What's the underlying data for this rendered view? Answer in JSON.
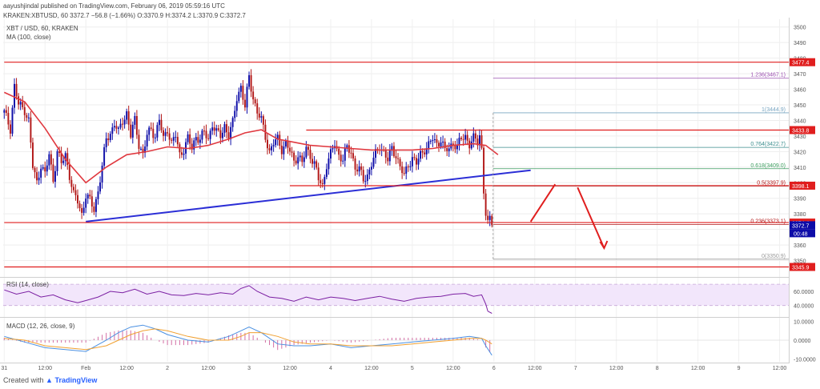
{
  "header": {
    "user_line": "aayushjindal published on TradingView.com, February 06, 2019 05:59:16 UTC",
    "ohlc_line": "KRAKEN:XBTUSD, 60  3372.7  −56.8 (−1.66%)  O:3370.9  H:3374.2  L:3370.9  C:3372.7",
    "symbol_line": "XBT / USD, 60, KRAKEN",
    "ma_line": "MA (100, close)"
  },
  "footer": {
    "prefix": "Created with",
    "brand": "TradingView"
  },
  "colors": {
    "up": "#0d0ca8",
    "down": "#b21717",
    "ma": "#e0383f",
    "trendline": "#2b2ed6",
    "resistance": "#e01e1e",
    "fib1": "#7aa6c2",
    "fib1236": "#9b4fb0",
    "fib764": "#3b8d8d",
    "fib618": "#3e9d60",
    "fib0": "#999999",
    "rsi": "#7b1fa2",
    "rsi_band": "#f2e6fb",
    "macd": "#4a90e2",
    "signal": "#f0a030",
    "hist": "#d36fa5"
  },
  "chart_data": [
    {
      "type": "candlestick",
      "title": "XBT / USD, 60, KRAKEN",
      "ylim": [
        3340,
        3505
      ],
      "y_ticks": [
        3350,
        3360,
        3370,
        3380,
        3390,
        3400,
        3410,
        3420,
        3430,
        3440,
        3450,
        3460,
        3470,
        3480,
        3490,
        3500
      ],
      "x_ticks": [
        {
          "bar": 0,
          "label": "31"
        },
        {
          "bar": 20,
          "label": "12:00"
        },
        {
          "bar": 40,
          "label": "Feb"
        },
        {
          "bar": 60,
          "label": "12:00"
        },
        {
          "bar": 80,
          "label": "2"
        },
        {
          "bar": 100,
          "label": "12:00"
        },
        {
          "bar": 120,
          "label": "3"
        },
        {
          "bar": 140,
          "label": "12:00"
        },
        {
          "bar": 160,
          "label": "4"
        },
        {
          "bar": 180,
          "label": "12:00"
        },
        {
          "bar": 200,
          "label": "5"
        },
        {
          "bar": 220,
          "label": "12:00"
        },
        {
          "bar": 240,
          "label": "6"
        },
        {
          "bar": 260,
          "label": "12:00"
        },
        {
          "bar": 280,
          "label": "7"
        },
        {
          "bar": 300,
          "label": "12:00"
        },
        {
          "bar": 320,
          "label": "8"
        },
        {
          "bar": 340,
          "label": "12:00"
        },
        {
          "bar": 360,
          "label": "9"
        },
        {
          "bar": 380,
          "label": "12:00"
        }
      ],
      "key_points": [
        [
          0,
          3445
        ],
        [
          3,
          3435
        ],
        [
          5,
          3462
        ],
        [
          7,
          3450
        ],
        [
          10,
          3447
        ],
        [
          12,
          3440
        ],
        [
          14,
          3410
        ],
        [
          16,
          3400
        ],
        [
          18,
          3412
        ],
        [
          20,
          3405
        ],
        [
          22,
          3418
        ],
        [
          24,
          3402
        ],
        [
          26,
          3420
        ],
        [
          28,
          3412
        ],
        [
          30,
          3418
        ],
        [
          32,
          3405
        ],
        [
          34,
          3392
        ],
        [
          36,
          3388
        ],
        [
          38,
          3380
        ],
        [
          40,
          3392
        ],
        [
          42,
          3388
        ],
        [
          44,
          3383
        ],
        [
          46,
          3395
        ],
        [
          48,
          3410
        ],
        [
          50,
          3428
        ],
        [
          52,
          3432
        ],
        [
          54,
          3438
        ],
        [
          56,
          3432
        ],
        [
          58,
          3440
        ],
        [
          60,
          3445
        ],
        [
          62,
          3430
        ],
        [
          64,
          3440
        ],
        [
          66,
          3425
        ],
        [
          68,
          3418
        ],
        [
          70,
          3430
        ],
        [
          72,
          3435
        ],
        [
          74,
          3430
        ],
        [
          76,
          3440
        ],
        [
          78,
          3428
        ],
        [
          80,
          3435
        ],
        [
          82,
          3425
        ],
        [
          84,
          3430
        ],
        [
          86,
          3418
        ],
        [
          88,
          3422
        ],
        [
          90,
          3428
        ],
        [
          92,
          3422
        ],
        [
          94,
          3430
        ],
        [
          96,
          3428
        ],
        [
          98,
          3432
        ],
        [
          100,
          3428
        ],
        [
          102,
          3438
        ],
        [
          104,
          3432
        ],
        [
          106,
          3430
        ],
        [
          108,
          3437
        ],
        [
          110,
          3430
        ],
        [
          112,
          3438
        ],
        [
          114,
          3455
        ],
        [
          116,
          3462
        ],
        [
          118,
          3448
        ],
        [
          120,
          3468
        ],
        [
          122,
          3455
        ],
        [
          124,
          3445
        ],
        [
          126,
          3440
        ],
        [
          128,
          3430
        ],
        [
          130,
          3420
        ],
        [
          132,
          3425
        ],
        [
          134,
          3428
        ],
        [
          136,
          3422
        ],
        [
          138,
          3425
        ],
        [
          140,
          3420
        ],
        [
          142,
          3414
        ],
        [
          144,
          3418
        ],
        [
          146,
          3412
        ],
        [
          148,
          3422
        ],
        [
          150,
          3418
        ],
        [
          152,
          3412
        ],
        [
          154,
          3402
        ],
        [
          156,
          3398
        ],
        [
          158,
          3412
        ],
        [
          160,
          3418
        ],
        [
          162,
          3425
        ],
        [
          164,
          3418
        ],
        [
          166,
          3415
        ],
        [
          168,
          3422
        ],
        [
          170,
          3420
        ],
        [
          172,
          3410
        ],
        [
          174,
          3408
        ],
        [
          176,
          3402
        ],
        [
          178,
          3405
        ],
        [
          180,
          3412
        ],
        [
          182,
          3418
        ],
        [
          184,
          3424
        ],
        [
          186,
          3420
        ],
        [
          188,
          3414
        ],
        [
          190,
          3422
        ],
        [
          192,
          3418
        ],
        [
          194,
          3410
        ],
        [
          196,
          3404
        ],
        [
          198,
          3412
        ],
        [
          200,
          3416
        ],
        [
          202,
          3412
        ],
        [
          204,
          3418
        ],
        [
          206,
          3422
        ],
        [
          208,
          3424
        ],
        [
          210,
          3428
        ],
        [
          212,
          3425
        ],
        [
          214,
          3428
        ],
        [
          216,
          3420
        ],
        [
          218,
          3422
        ],
        [
          220,
          3426
        ],
        [
          222,
          3423
        ],
        [
          224,
          3428
        ],
        [
          226,
          3430
        ],
        [
          228,
          3425
        ],
        [
          230,
          3428
        ],
        [
          232,
          3426
        ],
        [
          233,
          3431
        ],
        [
          234,
          3422
        ],
        [
          235,
          3395
        ],
        [
          236,
          3380
        ],
        [
          237,
          3373
        ],
        [
          238,
          3376
        ],
        [
          239,
          3372.7
        ]
      ],
      "ma_points": [
        [
          0,
          3458
        ],
        [
          10,
          3452
        ],
        [
          20,
          3435
        ],
        [
          30,
          3415
        ],
        [
          40,
          3400
        ],
        [
          50,
          3410
        ],
        [
          60,
          3418
        ],
        [
          70,
          3420
        ],
        [
          80,
          3423
        ],
        [
          90,
          3422
        ],
        [
          100,
          3424
        ],
        [
          110,
          3428
        ],
        [
          118,
          3432
        ],
        [
          126,
          3434
        ],
        [
          134,
          3428
        ],
        [
          142,
          3426
        ],
        [
          150,
          3424
        ],
        [
          160,
          3423
        ],
        [
          170,
          3422
        ],
        [
          180,
          3421
        ],
        [
          190,
          3421
        ],
        [
          200,
          3421
        ],
        [
          210,
          3422
        ],
        [
          220,
          3424
        ],
        [
          230,
          3425
        ],
        [
          236,
          3424
        ],
        [
          242,
          3418
        ]
      ],
      "moving_average": "MA (100, close)",
      "trendline": {
        "from": [
          40,
          3375
        ],
        "to": [
          258,
          3408
        ]
      },
      "horizontal_lines": [
        {
          "value": 3477.4,
          "label": "3477.4",
          "from_bar": 0,
          "to_bar": 385
        },
        {
          "value": 3433.8,
          "label": "3433.8",
          "from_bar": 148,
          "to_bar": 385
        },
        {
          "value": 3398.1,
          "label": "3398.1",
          "from_bar": 140,
          "to_bar": 385
        },
        {
          "value": 3374.4,
          "label": "3374.4",
          "from_bar": 0,
          "to_bar": 385
        },
        {
          "value": 3345.9,
          "label": "3345.9",
          "from_bar": 0,
          "to_bar": 385
        }
      ],
      "fibonacci": [
        {
          "ratio_label": "1.236(3467.1)",
          "value": 3467.1,
          "color_key": "fib1236"
        },
        {
          "ratio_label": "1(3444.9)",
          "value": 3444.9,
          "color_key": "fib1"
        },
        {
          "ratio_label": "0.764(3422.7)",
          "value": 3422.7,
          "color_key": "fib764"
        },
        {
          "ratio_label": "0.618(3409.0)",
          "value": 3409.0,
          "color_key": "fib618"
        },
        {
          "ratio_label": "0.5(3397.9)",
          "value": 3397.9,
          "color_key": "down"
        },
        {
          "ratio_label": "0.236(3373.1)",
          "value": 3373.1,
          "color_key": "down"
        },
        {
          "ratio_label": "0(3350.9)",
          "value": 3350.9,
          "color_key": "fib0"
        }
      ],
      "fib_from_bar": 240,
      "last_price": {
        "value": 3372.7,
        "label": "3372.7",
        "countdown": "00:48"
      },
      "projection": [
        [
          258,
          3375
        ],
        [
          270,
          3399
        ],
        [
          281,
          3397
        ],
        [
          294,
          3358
        ]
      ]
    },
    {
      "type": "line",
      "title": "RSI (14, close)",
      "ylim": [
        25,
        78
      ],
      "y_ticks": [
        40,
        60
      ],
      "y_tick_labels": [
        "40.0000",
        "60.0000"
      ],
      "band": [
        40,
        70
      ],
      "key_points": [
        [
          0,
          62
        ],
        [
          6,
          56
        ],
        [
          12,
          60
        ],
        [
          18,
          52
        ],
        [
          24,
          55
        ],
        [
          30,
          48
        ],
        [
          36,
          44
        ],
        [
          40,
          47
        ],
        [
          46,
          52
        ],
        [
          52,
          60
        ],
        [
          58,
          58
        ],
        [
          64,
          63
        ],
        [
          70,
          56
        ],
        [
          76,
          60
        ],
        [
          82,
          55
        ],
        [
          88,
          54
        ],
        [
          94,
          57
        ],
        [
          100,
          55
        ],
        [
          106,
          58
        ],
        [
          112,
          56
        ],
        [
          116,
          64
        ],
        [
          120,
          68
        ],
        [
          124,
          60
        ],
        [
          130,
          52
        ],
        [
          136,
          50
        ],
        [
          142,
          46
        ],
        [
          148,
          52
        ],
        [
          154,
          48
        ],
        [
          160,
          52
        ],
        [
          166,
          50
        ],
        [
          172,
          47
        ],
        [
          178,
          50
        ],
        [
          184,
          53
        ],
        [
          190,
          49
        ],
        [
          196,
          46
        ],
        [
          202,
          50
        ],
        [
          208,
          52
        ],
        [
          214,
          53
        ],
        [
          220,
          56
        ],
        [
          226,
          57
        ],
        [
          230,
          53
        ],
        [
          234,
          55
        ],
        [
          236,
          42
        ],
        [
          237,
          32
        ],
        [
          239,
          29
        ]
      ]
    },
    {
      "type": "macd",
      "title": "MACD (12, 26, close, 9)",
      "ylim": [
        -11.5,
        11.5
      ],
      "y_ticks": [
        10,
        0,
        -10
      ],
      "y_tick_labels": [
        "10.0000",
        "0.0000",
        "-10.0000"
      ],
      "macd": [
        [
          0,
          2
        ],
        [
          10,
          -1
        ],
        [
          20,
          -4
        ],
        [
          30,
          -5
        ],
        [
          40,
          -6
        ],
        [
          50,
          0
        ],
        [
          56,
          4
        ],
        [
          62,
          7
        ],
        [
          68,
          8
        ],
        [
          74,
          6
        ],
        [
          80,
          3
        ],
        [
          90,
          0
        ],
        [
          100,
          -1
        ],
        [
          110,
          2
        ],
        [
          116,
          5
        ],
        [
          120,
          7
        ],
        [
          126,
          4
        ],
        [
          134,
          -2
        ],
        [
          142,
          -3
        ],
        [
          150,
          -3
        ],
        [
          160,
          -2
        ],
        [
          170,
          -4
        ],
        [
          180,
          -3
        ],
        [
          190,
          -2
        ],
        [
          200,
          -1
        ],
        [
          210,
          0
        ],
        [
          220,
          1
        ],
        [
          228,
          2
        ],
        [
          234,
          1
        ],
        [
          236,
          -3
        ],
        [
          239,
          -8
        ]
      ],
      "signal": [
        [
          0,
          1
        ],
        [
          10,
          0
        ],
        [
          20,
          -3
        ],
        [
          30,
          -4
        ],
        [
          40,
          -5
        ],
        [
          50,
          -3
        ],
        [
          56,
          0
        ],
        [
          62,
          3
        ],
        [
          68,
          5
        ],
        [
          74,
          6
        ],
        [
          80,
          5
        ],
        [
          90,
          2
        ],
        [
          100,
          0
        ],
        [
          110,
          0
        ],
        [
          116,
          2
        ],
        [
          120,
          4
        ],
        [
          126,
          4
        ],
        [
          134,
          2
        ],
        [
          142,
          -1
        ],
        [
          150,
          -2
        ],
        [
          160,
          -2
        ],
        [
          170,
          -3
        ],
        [
          180,
          -3
        ],
        [
          190,
          -3
        ],
        [
          200,
          -2
        ],
        [
          210,
          -1
        ],
        [
          220,
          0
        ],
        [
          228,
          1
        ],
        [
          234,
          1
        ],
        [
          236,
          0
        ],
        [
          239,
          -2
        ]
      ]
    }
  ]
}
